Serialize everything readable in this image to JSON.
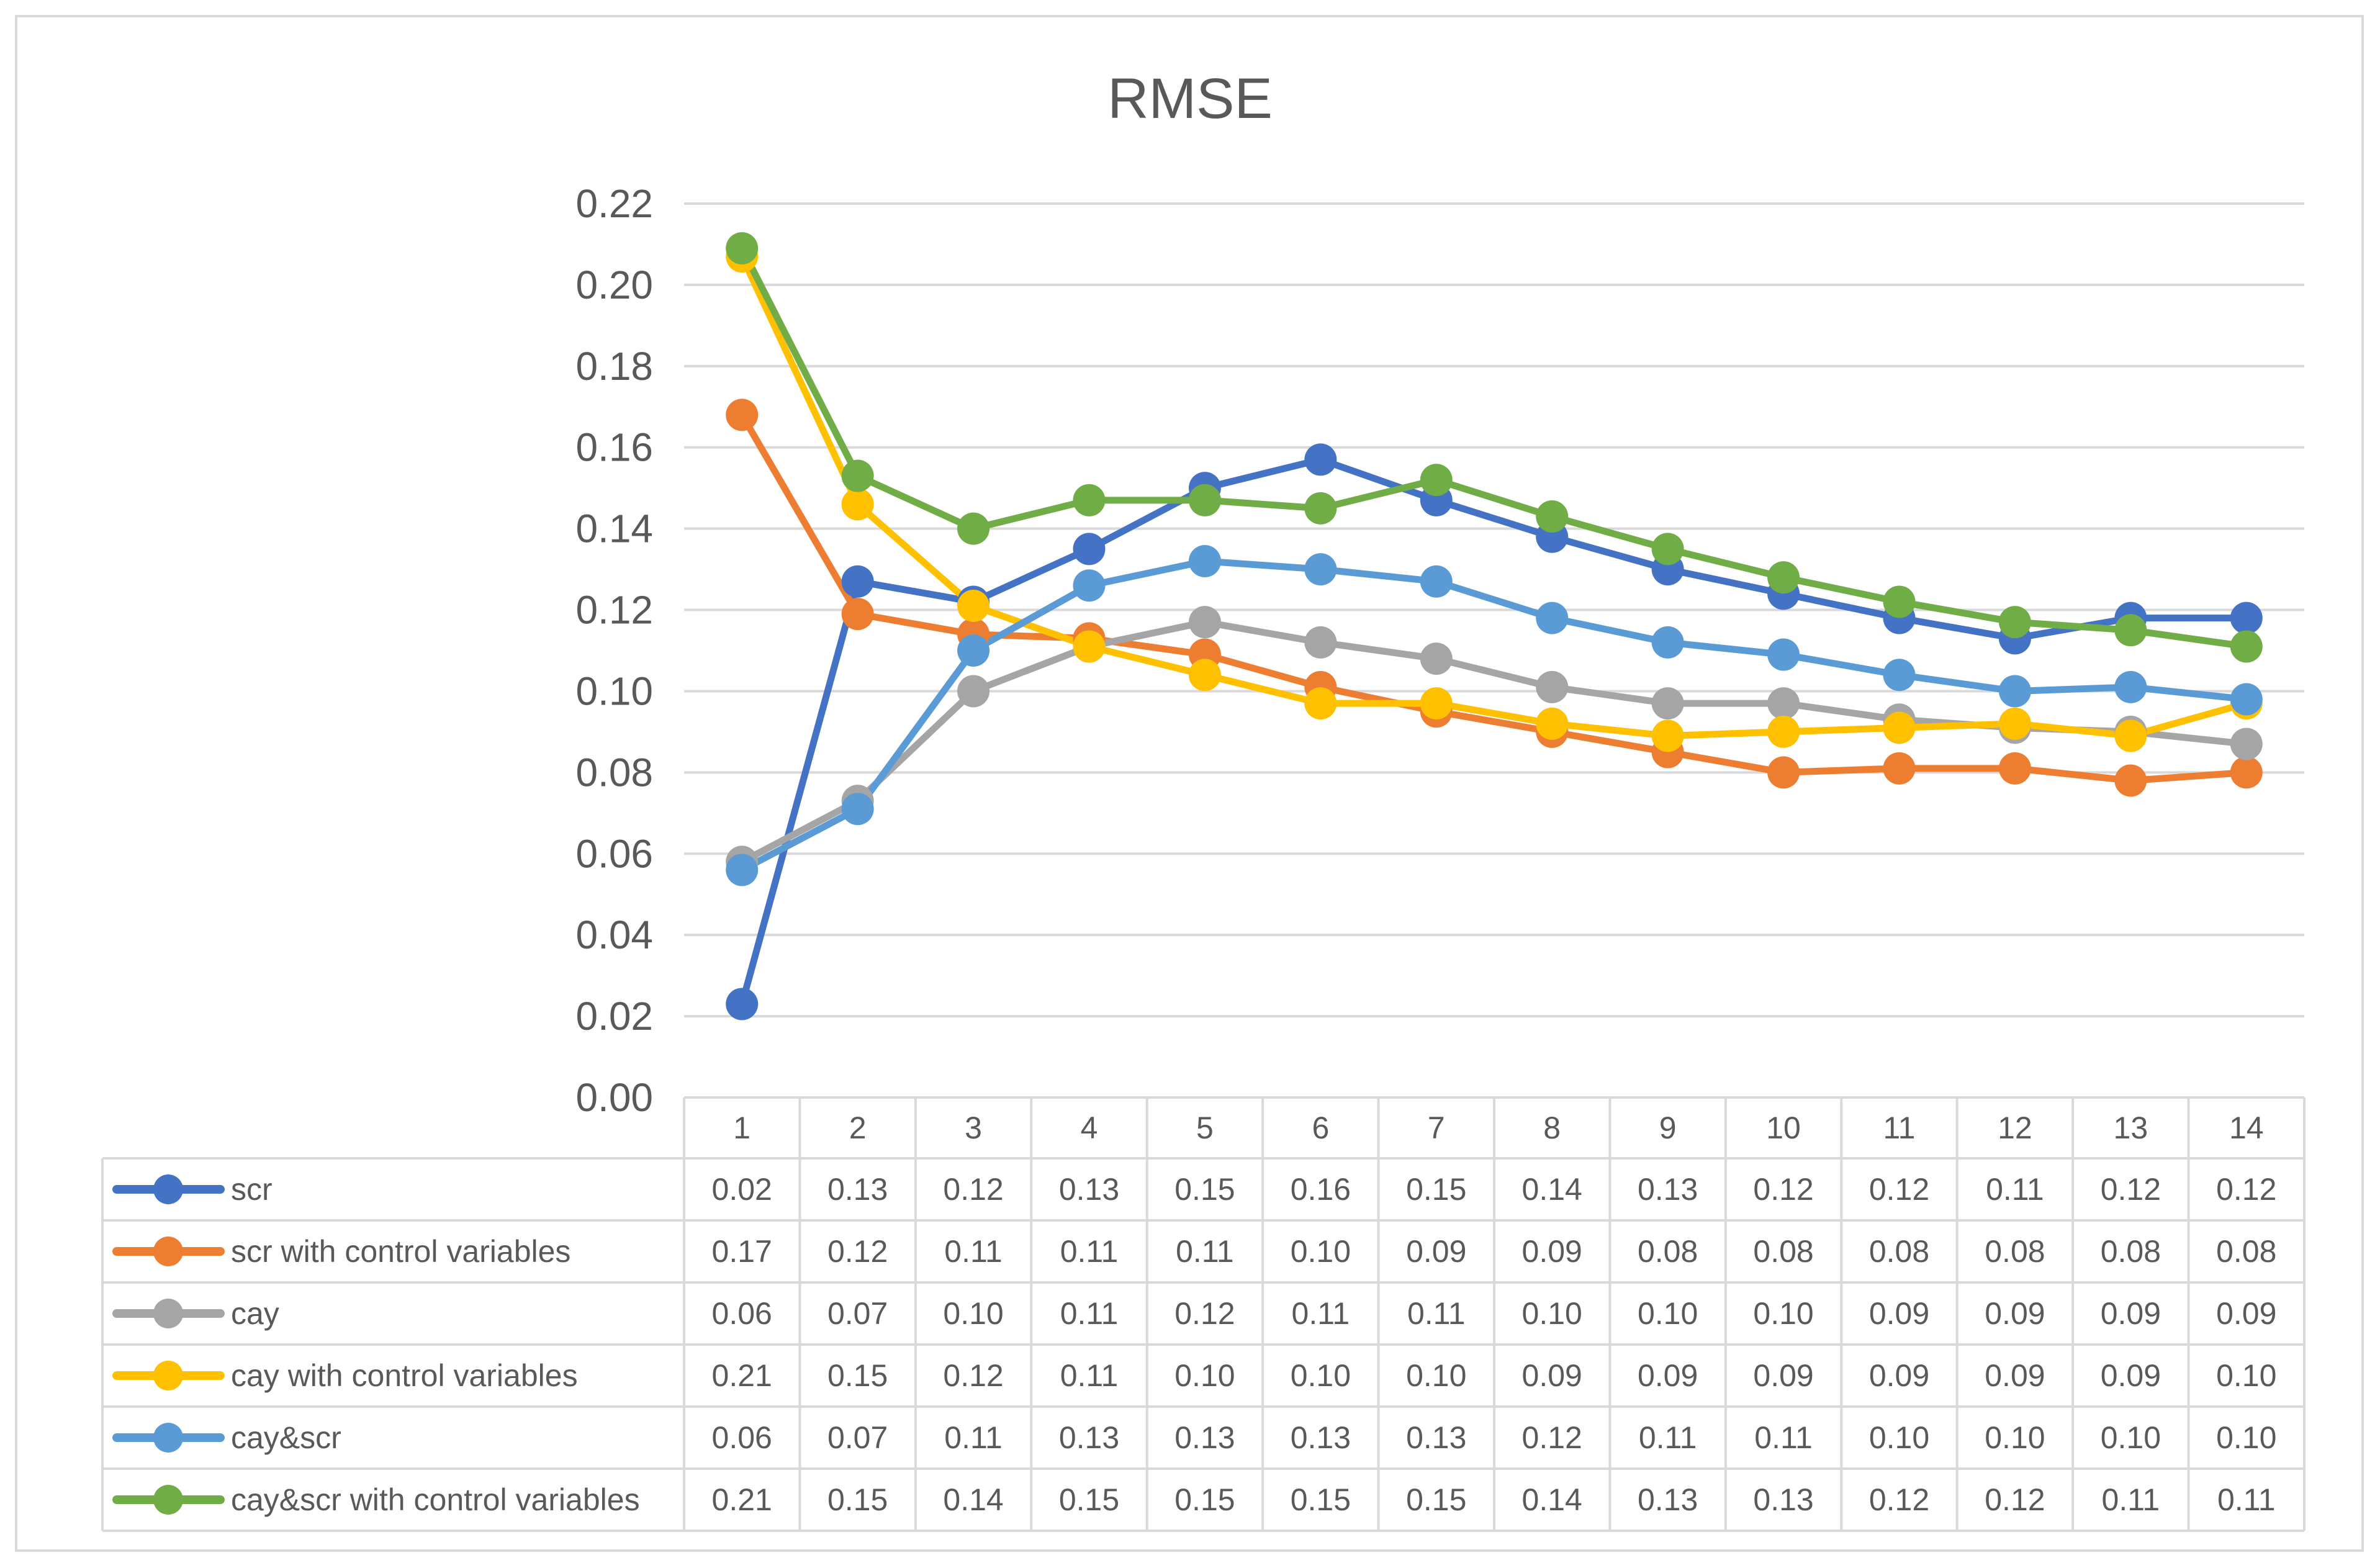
{
  "chart_data": {
    "type": "line",
    "title": "RMSE",
    "xlabel": "",
    "ylabel": "",
    "ylim": [
      0,
      0.22
    ],
    "yticks": [
      "0.00",
      "0.02",
      "0.04",
      "0.06",
      "0.08",
      "0.10",
      "0.12",
      "0.14",
      "0.16",
      "0.18",
      "0.20",
      "0.22"
    ],
    "categories": [
      "1",
      "2",
      "3",
      "4",
      "5",
      "6",
      "7",
      "8",
      "9",
      "10",
      "11",
      "12",
      "13",
      "14"
    ],
    "grid": true,
    "legend": "data-table-below",
    "series": [
      {
        "name": "scr",
        "color": "#4472c4",
        "values": [
          0.023,
          0.127,
          0.122,
          0.135,
          0.15,
          0.157,
          0.147,
          0.138,
          0.13,
          0.124,
          0.118,
          0.113,
          0.118,
          0.118
        ],
        "labels": [
          "0.02",
          "0.13",
          "0.12",
          "0.13",
          "0.15",
          "0.16",
          "0.15",
          "0.14",
          "0.13",
          "0.12",
          "0.12",
          "0.11",
          "0.12",
          "0.12"
        ]
      },
      {
        "name": "scr with control variables",
        "color": "#ed7d31",
        "values": [
          0.168,
          0.119,
          0.114,
          0.113,
          0.109,
          0.101,
          0.095,
          0.09,
          0.085,
          0.08,
          0.081,
          0.081,
          0.078,
          0.08
        ],
        "labels": [
          "0.17",
          "0.12",
          "0.11",
          "0.11",
          "0.11",
          "0.10",
          "0.09",
          "0.09",
          "0.08",
          "0.08",
          "0.08",
          "0.08",
          "0.08",
          "0.08"
        ]
      },
      {
        "name": "cay",
        "color": "#a5a5a5",
        "values": [
          0.058,
          0.073,
          0.1,
          0.111,
          0.117,
          0.112,
          0.108,
          0.101,
          0.097,
          0.097,
          0.093,
          0.091,
          0.09,
          0.087
        ],
        "labels": [
          "0.06",
          "0.07",
          "0.10",
          "0.11",
          "0.12",
          "0.11",
          "0.11",
          "0.10",
          "0.10",
          "0.10",
          "0.09",
          "0.09",
          "0.09",
          "0.09"
        ]
      },
      {
        "name": "cay with control variables",
        "color": "#ffc000",
        "values": [
          0.207,
          0.146,
          0.121,
          0.111,
          0.104,
          0.097,
          0.097,
          0.092,
          0.089,
          0.09,
          0.091,
          0.092,
          0.089,
          0.097
        ],
        "labels": [
          "0.21",
          "0.15",
          "0.12",
          "0.11",
          "0.10",
          "0.10",
          "0.10",
          "0.09",
          "0.09",
          "0.09",
          "0.09",
          "0.09",
          "0.09",
          "0.10"
        ]
      },
      {
        "name": "cay&scr",
        "color": "#5b9bd5",
        "values": [
          0.056,
          0.071,
          0.11,
          0.126,
          0.132,
          0.13,
          0.127,
          0.118,
          0.112,
          0.109,
          0.104,
          0.1,
          0.101,
          0.098
        ],
        "labels": [
          "0.06",
          "0.07",
          "0.11",
          "0.13",
          "0.13",
          "0.13",
          "0.13",
          "0.12",
          "0.11",
          "0.11",
          "0.10",
          "0.10",
          "0.10",
          "0.10"
        ]
      },
      {
        "name": "cay&scr with control variables",
        "color": "#70ad47",
        "values": [
          0.209,
          0.153,
          0.14,
          0.147,
          0.147,
          0.145,
          0.152,
          0.143,
          0.135,
          0.128,
          0.122,
          0.117,
          0.115,
          0.111
        ],
        "labels": [
          "0.21",
          "0.15",
          "0.14",
          "0.15",
          "0.15",
          "0.15",
          "0.15",
          "0.14",
          "0.13",
          "0.13",
          "0.12",
          "0.12",
          "0.11",
          "0.11"
        ]
      }
    ]
  }
}
